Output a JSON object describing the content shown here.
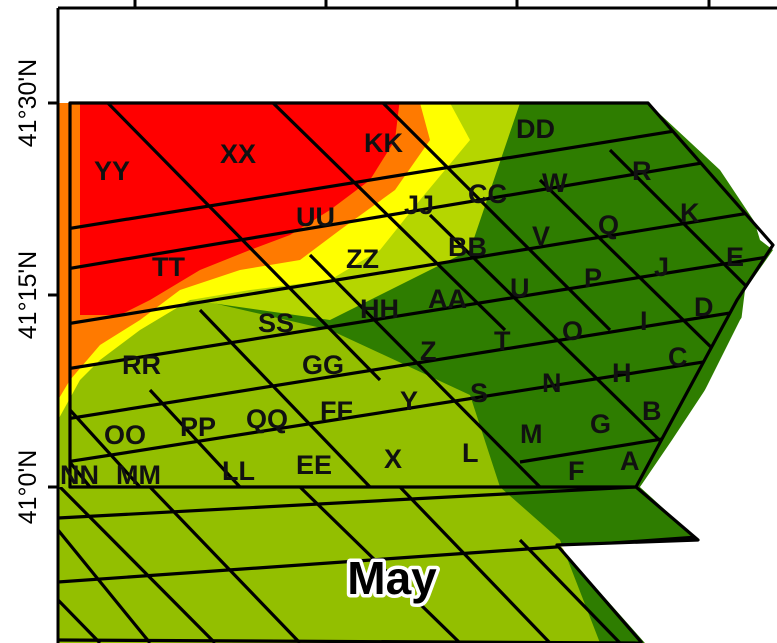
{
  "map": {
    "month_label": "May",
    "y_axis": {
      "ticks": [
        "41°30'N",
        "41°15'N",
        "41°0'N"
      ]
    },
    "colors": {
      "high": "#ff0000",
      "mid_high": "#ff7a00",
      "mid": "#ffff00",
      "mid_low": "#b5d600",
      "low": "#2e7d00",
      "region_lines": "#000000"
    },
    "grid_labels": [
      "YY",
      "XX",
      "KK",
      "DD",
      "R",
      "W",
      "CC",
      "JJ",
      "UU",
      "K",
      "Q",
      "V",
      "BB",
      "ZZ",
      "TT",
      "E",
      "J",
      "P",
      "U",
      "AA",
      "HH",
      "SS",
      "D",
      "I",
      "O",
      "T",
      "Z",
      "GG",
      "RR",
      "C",
      "H",
      "N",
      "S",
      "Y",
      "FF",
      "QQ",
      "PP",
      "OO",
      "B",
      "G",
      "M",
      "L",
      "X",
      "EE",
      "LL",
      "NN",
      "MM",
      "F",
      "A"
    ]
  }
}
